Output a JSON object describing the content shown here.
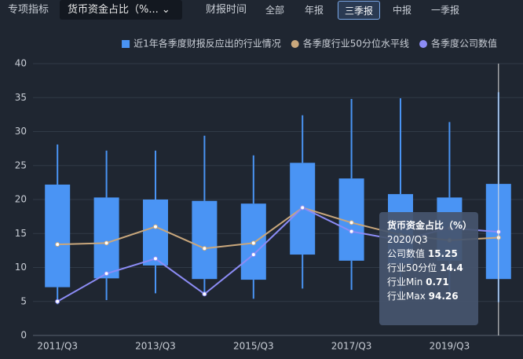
{
  "toolbar": {
    "indicator_label": "专项指标",
    "indicator_value": "货币资金占比（%...",
    "period_label": "财报时间",
    "tabs": [
      "全部",
      "年报",
      "三季报",
      "中报",
      "一季报"
    ],
    "active_tab": 2
  },
  "chart_data": {
    "type": "box",
    "categories": [
      "2011/Q3",
      null,
      "2013/Q3",
      null,
      "2015/Q3",
      null,
      "2017/Q3",
      null,
      "2019/Q3",
      null
    ],
    "boxes": {
      "name": "近1年各季度财报反应出的行业情况",
      "color": "#4a94f4",
      "low": [
        4.6,
        5.2,
        6.2,
        6.0,
        5.4,
        6.9,
        6.7,
        6.0,
        6.0,
        4.9
      ],
      "q1": [
        7.1,
        8.4,
        10.3,
        8.3,
        8.2,
        11.9,
        11.0,
        10.5,
        11.0,
        8.3
      ],
      "q3": [
        22.2,
        20.3,
        20.0,
        19.8,
        19.4,
        25.4,
        23.1,
        20.8,
        20.3,
        22.3
      ],
      "high": [
        28.1,
        27.2,
        27.2,
        29.4,
        26.5,
        32.4,
        34.8,
        34.9,
        31.4,
        35.8
      ]
    },
    "series": [
      {
        "name": "各季度行业50分位水平线",
        "color": "#c9a77c",
        "values": [
          13.4,
          13.6,
          16.0,
          12.8,
          13.6,
          18.8,
          16.6,
          14.8,
          14.0,
          14.4
        ]
      },
      {
        "name": "各季度公司数值",
        "color": "#8c8cf5",
        "values": [
          5.0,
          9.1,
          11.3,
          6.1,
          11.9,
          18.8,
          15.3,
          14.0,
          15.8,
          15.25
        ]
      }
    ],
    "ylim": [
      0,
      40
    ],
    "yticks": [
      0,
      5,
      10,
      15,
      20,
      25,
      30,
      35,
      40
    ],
    "grid": true
  },
  "tooltip": {
    "title": "货币资金占比（%）",
    "category": "2020/Q3",
    "rows": [
      {
        "label": "公司数值",
        "value": 15.25
      },
      {
        "label": "行业50分位",
        "value": 14.4
      },
      {
        "label": "行业Min",
        "value": 0.71
      },
      {
        "label": "行业Max",
        "value": 94.26
      }
    ]
  }
}
